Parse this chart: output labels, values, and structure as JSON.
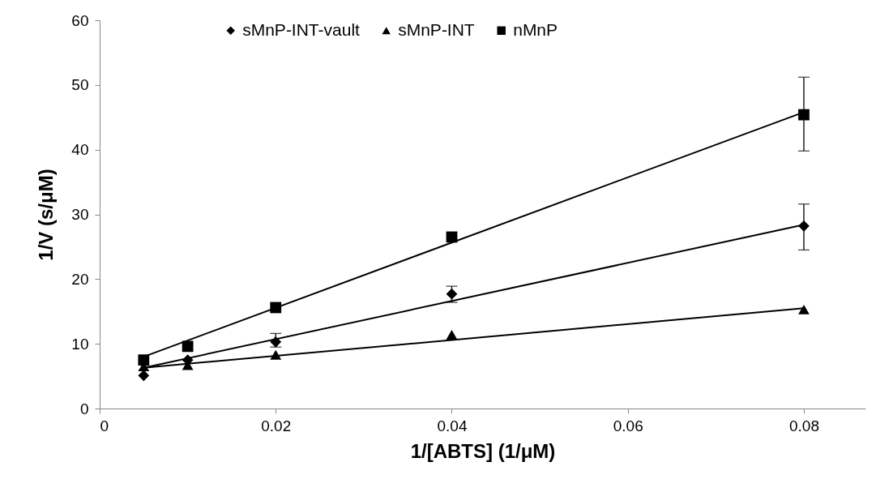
{
  "chart_data": {
    "type": "scatter",
    "xlabel": "1/[ABTS] (1/μM)",
    "ylabel": "1/V (s/μM)",
    "xlim": [
      0,
      0.087
    ],
    "ylim": [
      0,
      60
    ],
    "xticks": [
      0,
      0.02,
      0.04,
      0.06,
      0.08
    ],
    "yticks": [
      0,
      10,
      20,
      30,
      40,
      50,
      60
    ],
    "legend": "top",
    "series": [
      {
        "name": "sMnP-INT-vault",
        "color": "#000000",
        "marker": "diamond",
        "x": [
          0.005,
          0.01,
          0.02,
          0.04,
          0.08
        ],
        "values": [
          5.1,
          7.5,
          10.3,
          17.7,
          28.2
        ],
        "errors": [
          null,
          null,
          [
            9.5,
            11.6
          ],
          [
            16.4,
            18.9
          ],
          [
            24.5,
            31.6
          ]
        ]
      },
      {
        "name": "sMnP-INT",
        "color": "#000000",
        "marker": "triangle",
        "x": [
          0.005,
          0.01,
          0.02,
          0.04,
          0.08
        ],
        "values": [
          6.5,
          6.7,
          8.3,
          11.4,
          15.3
        ]
      },
      {
        "name": "nMnP",
        "color": "#000000",
        "marker": "square",
        "x": [
          0.005,
          0.01,
          0.02,
          0.04,
          0.08
        ],
        "values": [
          7.5,
          9.6,
          15.6,
          26.5,
          45.4
        ],
        "errors": [
          null,
          null,
          null,
          null,
          [
            39.8,
            51.2
          ]
        ]
      },
      {
        "type": "line",
        "color": "#000000",
        "x": [
          0.005,
          0.08
        ],
        "values": [
          6.3,
          28.4
        ]
      },
      {
        "type": "line",
        "color": "#000000",
        "x": [
          0.005,
          0.08
        ],
        "values": [
          6.3,
          15.5
        ]
      },
      {
        "type": "line",
        "color": "#000000",
        "x": [
          0.005,
          0.08
        ],
        "values": [
          8.0,
          45.8
        ]
      }
    ]
  }
}
